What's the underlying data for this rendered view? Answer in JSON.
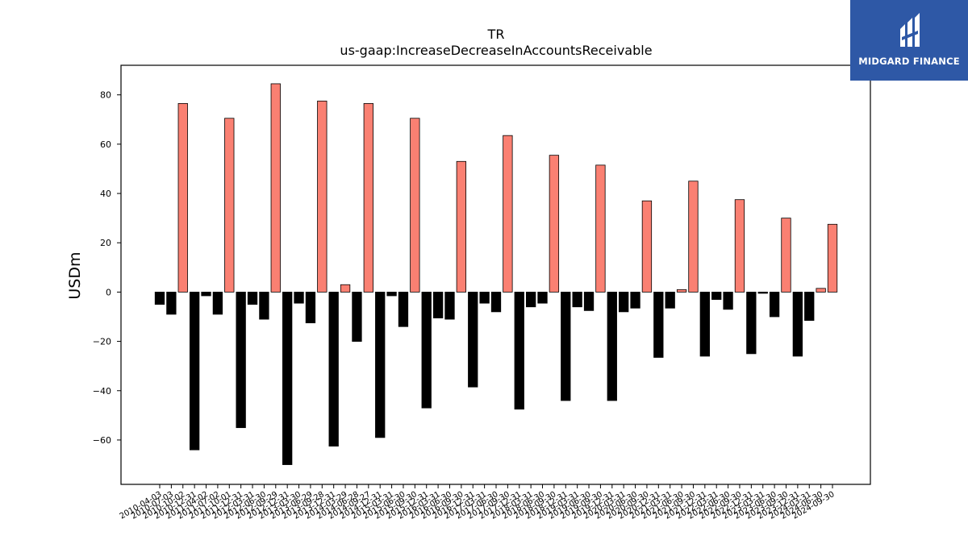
{
  "chart_data": {
    "type": "bar",
    "title": "TR",
    "subtitle": "us-gaap:IncreaseDecreaseInAccountsReceivable",
    "xlabel": "",
    "ylabel": "USDm",
    "ylim": [
      -78,
      92
    ],
    "yticks": [
      -60,
      -40,
      -20,
      0,
      20,
      40,
      60,
      80
    ],
    "grid": false,
    "colors": {
      "positive": "#fa8072",
      "negative": "#000000"
    },
    "categories": [
      "2010-04-03",
      "2010-07-03",
      "2010-10-02",
      "2010-12-31",
      "2011-04-02",
      "2011-07-02",
      "2011-10-01",
      "2011-12-31",
      "2012-03-31",
      "2012-06-30",
      "2012-09-29",
      "2012-12-31",
      "2013-03-30",
      "2013-06-29",
      "2013-09-28",
      "2013-12-31",
      "2014-03-29",
      "2014-06-28",
      "2014-09-27",
      "2014-12-31",
      "2015-03-31",
      "2015-06-30",
      "2015-09-30",
      "2015-12-31",
      "2016-03-31",
      "2016-06-30",
      "2016-09-30",
      "2016-12-31",
      "2017-03-31",
      "2017-06-30",
      "2017-09-30",
      "2017-12-31",
      "2018-03-31",
      "2018-06-30",
      "2018-09-30",
      "2018-12-31",
      "2019-03-31",
      "2019-06-30",
      "2019-09-30",
      "2019-12-31",
      "2020-03-31",
      "2020-06-30",
      "2020-09-30",
      "2020-12-31",
      "2021-03-31",
      "2021-06-30",
      "2021-09-30",
      "2021-12-31",
      "2022-03-31",
      "2022-06-30",
      "2022-09-30",
      "2022-12-31",
      "2023-03-31",
      "2023-06-30",
      "2023-09-30",
      "2023-12-31",
      "2024-03-31",
      "2024-06-30",
      "2024-09-30"
    ],
    "values": [
      -5,
      -9,
      76.5,
      -64,
      -1.5,
      -9,
      70.5,
      -55,
      -5,
      -11,
      84.5,
      -70,
      -4.5,
      -12.5,
      77.5,
      -62.5,
      3,
      -20,
      76.5,
      -59,
      -1.5,
      -14,
      70.5,
      -47,
      -10.5,
      -11,
      53,
      -38.5,
      -4.5,
      -8,
      63.5,
      -47.5,
      -6,
      -4.5,
      55.5,
      -44,
      -6,
      -7.5,
      51.5,
      -44,
      -8,
      -6.5,
      37,
      -26.5,
      -6.5,
      1,
      45,
      -26,
      -3,
      -7,
      37.5,
      -25,
      -0.5,
      -10,
      30,
      -26,
      -11.5,
      1.5,
      27.5
    ]
  },
  "logo": {
    "text": "MIDGARD FINANCE",
    "icon": "midgard-logo-icon",
    "background": "#2e58a6"
  }
}
